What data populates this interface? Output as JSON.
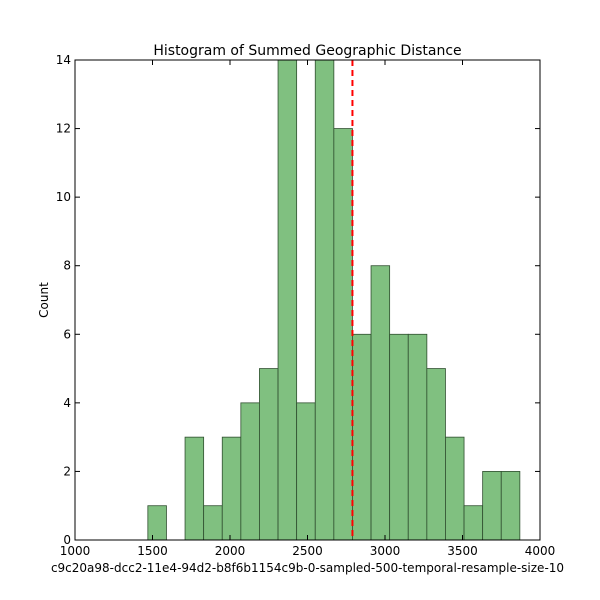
{
  "chart_data": {
    "type": "bar",
    "title": "Histogram of Summed Geographic Distance",
    "xlabel": "c9c20a98-dcc2-11e4-94d2-b8f6b1154c9b-0-sampled-500-temporal-resample-size-10",
    "ylabel": "Count",
    "xlim": [
      1000,
      4000
    ],
    "ylim": [
      0,
      14
    ],
    "xticks": [
      1000,
      1500,
      2000,
      2500,
      3000,
      3500,
      4000
    ],
    "yticks": [
      0,
      2,
      4,
      6,
      8,
      10,
      12,
      14
    ],
    "bins": [
      {
        "start": 1470,
        "end": 1590,
        "count": 1
      },
      {
        "start": 1590,
        "end": 1710,
        "count": 0
      },
      {
        "start": 1710,
        "end": 1830,
        "count": 3
      },
      {
        "start": 1830,
        "end": 1950,
        "count": 1
      },
      {
        "start": 1950,
        "end": 2070,
        "count": 3
      },
      {
        "start": 2070,
        "end": 2190,
        "count": 4
      },
      {
        "start": 2190,
        "end": 2310,
        "count": 5
      },
      {
        "start": 2310,
        "end": 2430,
        "count": 14
      },
      {
        "start": 2430,
        "end": 2550,
        "count": 4
      },
      {
        "start": 2550,
        "end": 2670,
        "count": 14
      },
      {
        "start": 2670,
        "end": 2790,
        "count": 12
      },
      {
        "start": 2790,
        "end": 2910,
        "count": 6
      },
      {
        "start": 2910,
        "end": 3030,
        "count": 8
      },
      {
        "start": 3030,
        "end": 3150,
        "count": 6
      },
      {
        "start": 3150,
        "end": 3270,
        "count": 6
      },
      {
        "start": 3270,
        "end": 3390,
        "count": 5
      },
      {
        "start": 3390,
        "end": 3510,
        "count": 3
      },
      {
        "start": 3510,
        "end": 3630,
        "count": 1
      },
      {
        "start": 3630,
        "end": 3750,
        "count": 2
      },
      {
        "start": 3750,
        "end": 3870,
        "count": 2
      }
    ],
    "vline": {
      "x": 2790,
      "color": "#ff0000",
      "style": "dashed"
    },
    "bar_color": "#80c080",
    "bar_edge_color": "#2f4f2f",
    "grid": false,
    "legend": "none"
  }
}
